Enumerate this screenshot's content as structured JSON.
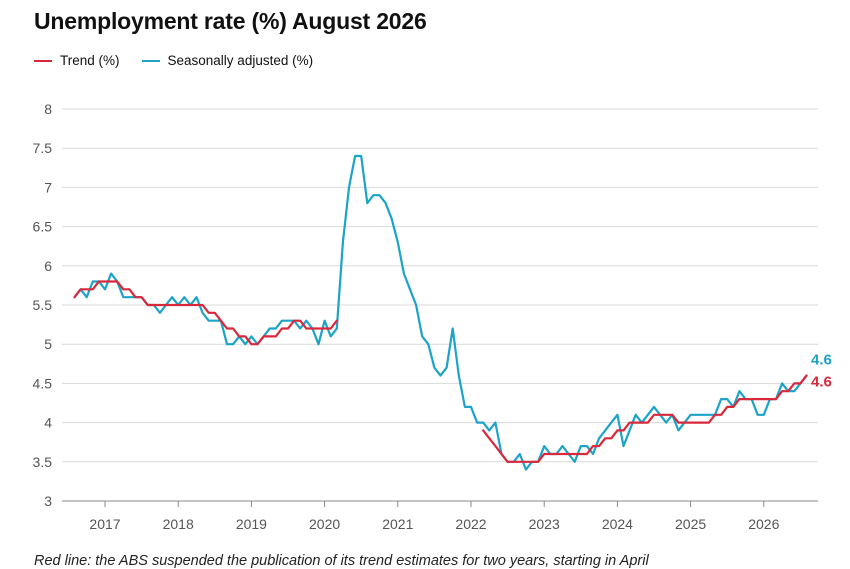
{
  "title": "Unemployment rate (%) August 2026",
  "footnote": "Red line: the ABS suspended the publication of its trend estimates for two years, starting in April",
  "colors": {
    "trend": "#d9283a",
    "seasonal": "#1ca3c8",
    "grid": "#d9d9d9",
    "tick_text": "#555555"
  },
  "chart_data": {
    "type": "line",
    "title": "Unemployment rate (%) August 2026",
    "xlabel": "",
    "ylabel": "",
    "ylim": [
      3,
      8
    ],
    "xlim": [
      "2016-08",
      "2026-09"
    ],
    "grid": true,
    "legend_position": "top-left",
    "y_ticks": [
      "3",
      "3.5",
      "4",
      "4.5",
      "5",
      "5.5",
      "6",
      "6.5",
      "7",
      "7.5",
      "8"
    ],
    "x_ticks": [
      "2017",
      "2018",
      "2019",
      "2020",
      "2021",
      "2022",
      "2023",
      "2024",
      "2025",
      "2026"
    ],
    "series": [
      {
        "name": "Trend (%)",
        "color": "#d9283a",
        "end_label": "4.6",
        "points": [
          [
            "2016-08",
            5.6
          ],
          [
            "2016-09",
            5.7
          ],
          [
            "2016-10",
            5.7
          ],
          [
            "2016-11",
            5.7
          ],
          [
            "2016-12",
            5.8
          ],
          [
            "2017-01",
            5.8
          ],
          [
            "2017-02",
            5.8
          ],
          [
            "2017-03",
            5.8
          ],
          [
            "2017-04",
            5.7
          ],
          [
            "2017-05",
            5.7
          ],
          [
            "2017-06",
            5.6
          ],
          [
            "2017-07",
            5.6
          ],
          [
            "2017-08",
            5.5
          ],
          [
            "2017-09",
            5.5
          ],
          [
            "2017-10",
            5.5
          ],
          [
            "2017-11",
            5.5
          ],
          [
            "2017-12",
            5.5
          ],
          [
            "2018-01",
            5.5
          ],
          [
            "2018-02",
            5.5
          ],
          [
            "2018-03",
            5.5
          ],
          [
            "2018-04",
            5.5
          ],
          [
            "2018-05",
            5.5
          ],
          [
            "2018-06",
            5.4
          ],
          [
            "2018-07",
            5.4
          ],
          [
            "2018-08",
            5.3
          ],
          [
            "2018-09",
            5.2
          ],
          [
            "2018-10",
            5.2
          ],
          [
            "2018-11",
            5.1
          ],
          [
            "2018-12",
            5.1
          ],
          [
            "2019-01",
            5.0
          ],
          [
            "2019-02",
            5.0
          ],
          [
            "2019-03",
            5.1
          ],
          [
            "2019-04",
            5.1
          ],
          [
            "2019-05",
            5.1
          ],
          [
            "2019-06",
            5.2
          ],
          [
            "2019-07",
            5.2
          ],
          [
            "2019-08",
            5.3
          ],
          [
            "2019-09",
            5.3
          ],
          [
            "2019-10",
            5.2
          ],
          [
            "2019-11",
            5.2
          ],
          [
            "2019-12",
            5.2
          ],
          [
            "2020-01",
            5.2
          ],
          [
            "2020-02",
            5.2
          ],
          [
            "2020-03",
            5.3
          ],
          null,
          [
            "2022-03",
            3.9
          ],
          [
            "2022-04",
            3.8
          ],
          [
            "2022-05",
            3.7
          ],
          [
            "2022-06",
            3.6
          ],
          [
            "2022-07",
            3.5
          ],
          [
            "2022-08",
            3.5
          ],
          [
            "2022-09",
            3.5
          ],
          [
            "2022-10",
            3.5
          ],
          [
            "2022-11",
            3.5
          ],
          [
            "2022-12",
            3.5
          ],
          [
            "2023-01",
            3.6
          ],
          [
            "2023-02",
            3.6
          ],
          [
            "2023-03",
            3.6
          ],
          [
            "2023-04",
            3.6
          ],
          [
            "2023-05",
            3.6
          ],
          [
            "2023-06",
            3.6
          ],
          [
            "2023-07",
            3.6
          ],
          [
            "2023-08",
            3.6
          ],
          [
            "2023-09",
            3.7
          ],
          [
            "2023-10",
            3.7
          ],
          [
            "2023-11",
            3.8
          ],
          [
            "2023-12",
            3.8
          ],
          [
            "2024-01",
            3.9
          ],
          [
            "2024-02",
            3.9
          ],
          [
            "2024-03",
            4.0
          ],
          [
            "2024-04",
            4.0
          ],
          [
            "2024-05",
            4.0
          ],
          [
            "2024-06",
            4.0
          ],
          [
            "2024-07",
            4.1
          ],
          [
            "2024-08",
            4.1
          ],
          [
            "2024-09",
            4.1
          ],
          [
            "2024-10",
            4.1
          ],
          [
            "2024-11",
            4.0
          ],
          [
            "2024-12",
            4.0
          ],
          [
            "2025-01",
            4.0
          ],
          [
            "2025-02",
            4.0
          ],
          [
            "2025-03",
            4.0
          ],
          [
            "2025-04",
            4.0
          ],
          [
            "2025-05",
            4.1
          ],
          [
            "2025-06",
            4.1
          ],
          [
            "2025-07",
            4.2
          ],
          [
            "2025-08",
            4.2
          ],
          [
            "2025-09",
            4.3
          ],
          [
            "2025-10",
            4.3
          ],
          [
            "2025-11",
            4.3
          ],
          [
            "2025-12",
            4.3
          ],
          [
            "2026-01",
            4.3
          ],
          [
            "2026-02",
            4.3
          ],
          [
            "2026-03",
            4.3
          ],
          [
            "2026-04",
            4.4
          ],
          [
            "2026-05",
            4.4
          ],
          [
            "2026-06",
            4.5
          ],
          [
            "2026-07",
            4.5
          ],
          [
            "2026-08",
            4.6
          ]
        ]
      },
      {
        "name": "Seasonally adjusted (%)",
        "color": "#1ca3c8",
        "end_label": "4.6",
        "points": [
          [
            "2016-08",
            5.6
          ],
          [
            "2016-09",
            5.7
          ],
          [
            "2016-10",
            5.6
          ],
          [
            "2016-11",
            5.8
          ],
          [
            "2016-12",
            5.8
          ],
          [
            "2017-01",
            5.7
          ],
          [
            "2017-02",
            5.9
          ],
          [
            "2017-03",
            5.8
          ],
          [
            "2017-04",
            5.6
          ],
          [
            "2017-05",
            5.6
          ],
          [
            "2017-06",
            5.6
          ],
          [
            "2017-07",
            5.6
          ],
          [
            "2017-08",
            5.5
          ],
          [
            "2017-09",
            5.5
          ],
          [
            "2017-10",
            5.4
          ],
          [
            "2017-11",
            5.5
          ],
          [
            "2017-12",
            5.6
          ],
          [
            "2018-01",
            5.5
          ],
          [
            "2018-02",
            5.6
          ],
          [
            "2018-03",
            5.5
          ],
          [
            "2018-04",
            5.6
          ],
          [
            "2018-05",
            5.4
          ],
          [
            "2018-06",
            5.3
          ],
          [
            "2018-07",
            5.3
          ],
          [
            "2018-08",
            5.3
          ],
          [
            "2018-09",
            5.0
          ],
          [
            "2018-10",
            5.0
          ],
          [
            "2018-11",
            5.1
          ],
          [
            "2018-12",
            5.0
          ],
          [
            "2019-01",
            5.1
          ],
          [
            "2019-02",
            5.0
          ],
          [
            "2019-03",
            5.1
          ],
          [
            "2019-04",
            5.2
          ],
          [
            "2019-05",
            5.2
          ],
          [
            "2019-06",
            5.3
          ],
          [
            "2019-07",
            5.3
          ],
          [
            "2019-08",
            5.3
          ],
          [
            "2019-09",
            5.2
          ],
          [
            "2019-10",
            5.3
          ],
          [
            "2019-11",
            5.2
          ],
          [
            "2019-12",
            5.0
          ],
          [
            "2020-01",
            5.3
          ],
          [
            "2020-02",
            5.1
          ],
          [
            "2020-03",
            5.2
          ],
          [
            "2020-04",
            6.3
          ],
          [
            "2020-05",
            7.0
          ],
          [
            "2020-06",
            7.4
          ],
          [
            "2020-07",
            7.4
          ],
          [
            "2020-08",
            6.8
          ],
          [
            "2020-09",
            6.9
          ],
          [
            "2020-10",
            6.9
          ],
          [
            "2020-11",
            6.8
          ],
          [
            "2020-12",
            6.6
          ],
          [
            "2021-01",
            6.3
          ],
          [
            "2021-02",
            5.9
          ],
          [
            "2021-03",
            5.7
          ],
          [
            "2021-04",
            5.5
          ],
          [
            "2021-05",
            5.1
          ],
          [
            "2021-06",
            5.0
          ],
          [
            "2021-07",
            4.7
          ],
          [
            "2021-08",
            4.6
          ],
          [
            "2021-09",
            4.7
          ],
          [
            "2021-10",
            5.2
          ],
          [
            "2021-11",
            4.6
          ],
          [
            "2021-12",
            4.2
          ],
          [
            "2022-01",
            4.2
          ],
          [
            "2022-02",
            4.0
          ],
          [
            "2022-03",
            4.0
          ],
          [
            "2022-04",
            3.9
          ],
          [
            "2022-05",
            4.0
          ],
          [
            "2022-06",
            3.6
          ],
          [
            "2022-07",
            3.5
          ],
          [
            "2022-08",
            3.5
          ],
          [
            "2022-09",
            3.6
          ],
          [
            "2022-10",
            3.4
          ],
          [
            "2022-11",
            3.5
          ],
          [
            "2022-12",
            3.5
          ],
          [
            "2023-01",
            3.7
          ],
          [
            "2023-02",
            3.6
          ],
          [
            "2023-03",
            3.6
          ],
          [
            "2023-04",
            3.7
          ],
          [
            "2023-05",
            3.6
          ],
          [
            "2023-06",
            3.5
          ],
          [
            "2023-07",
            3.7
          ],
          [
            "2023-08",
            3.7
          ],
          [
            "2023-09",
            3.6
          ],
          [
            "2023-10",
            3.8
          ],
          [
            "2023-11",
            3.9
          ],
          [
            "2023-12",
            4.0
          ],
          [
            "2024-01",
            4.1
          ],
          [
            "2024-02",
            3.7
          ],
          [
            "2024-03",
            3.9
          ],
          [
            "2024-04",
            4.1
          ],
          [
            "2024-05",
            4.0
          ],
          [
            "2024-06",
            4.1
          ],
          [
            "2024-07",
            4.2
          ],
          [
            "2024-08",
            4.1
          ],
          [
            "2024-09",
            4.0
          ],
          [
            "2024-10",
            4.1
          ],
          [
            "2024-11",
            3.9
          ],
          [
            "2024-12",
            4.0
          ],
          [
            "2025-01",
            4.1
          ],
          [
            "2025-02",
            4.1
          ],
          [
            "2025-03",
            4.1
          ],
          [
            "2025-04",
            4.1
          ],
          [
            "2025-05",
            4.1
          ],
          [
            "2025-06",
            4.3
          ],
          [
            "2025-07",
            4.3
          ],
          [
            "2025-08",
            4.2
          ],
          [
            "2025-09",
            4.4
          ],
          [
            "2025-10",
            4.3
          ],
          [
            "2025-11",
            4.3
          ],
          [
            "2025-12",
            4.1
          ],
          [
            "2026-01",
            4.1
          ],
          [
            "2026-02",
            4.3
          ],
          [
            "2026-03",
            4.3
          ],
          [
            "2026-04",
            4.5
          ],
          [
            "2026-05",
            4.4
          ],
          [
            "2026-06",
            4.4
          ],
          [
            "2026-07",
            4.5
          ],
          [
            "2026-08",
            4.6
          ]
        ]
      }
    ]
  }
}
